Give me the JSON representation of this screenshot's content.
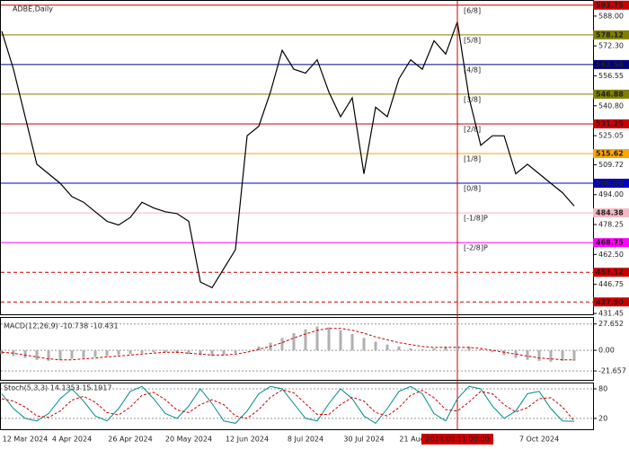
{
  "chart_data": [
    {
      "type": "line",
      "title": "ADBE,Daily",
      "color": "#000000",
      "categories": [
        null,
        null,
        "12 Mar 2024",
        null,
        null,
        null,
        "4 Apr 2024",
        null,
        null,
        null,
        null,
        "26 Apr 2024",
        null,
        null,
        null,
        null,
        "20 May 2024",
        null,
        null,
        null,
        null,
        "12 Jun 2024",
        null,
        null,
        null,
        null,
        "8 Jul 2024",
        null,
        null,
        null,
        null,
        "30 Jul 2024",
        null,
        null,
        null,
        null,
        "21 Aug 2024",
        null,
        null,
        "2024.09.11 00:00",
        null,
        null,
        null,
        null,
        null,
        null,
        "7 Oct 2024",
        null,
        null,
        null
      ],
      "values": [
        580,
        560,
        535,
        510,
        505,
        500,
        493,
        490,
        485,
        480,
        478,
        482,
        490,
        487,
        485,
        484,
        480,
        448,
        445,
        455,
        465,
        525,
        530,
        548,
        570,
        560,
        558,
        565,
        548,
        535,
        545,
        505,
        540,
        535,
        555,
        565,
        560,
        575,
        568,
        585,
        545,
        520,
        525,
        525,
        505,
        510,
        505,
        500,
        495,
        488
      ],
      "crosshair_index": 39,
      "ylim": [
        431,
        596
      ],
      "yticks": [
        {
          "value": 588,
          "label": "588.00"
        },
        {
          "value": 572.3,
          "label": "572.30"
        },
        556.55,
        {
          "value": 540.8,
          "label": "540.80"
        },
        525.05,
        509.72,
        {
          "value": 494,
          "label": "494.00"
        },
        478.25,
        {
          "value": 462.5,
          "label": "462.50"
        },
        446.75,
        431.45
      ],
      "levels": [
        {
          "value": 593.75,
          "label": "593.75",
          "tag": "[6/8]",
          "color": "#cc0000",
          "dashed": false
        },
        {
          "value": 578.12,
          "label": "578.12",
          "tag": "[5/8]",
          "color": "#808000",
          "dashed": false
        },
        {
          "value": 562.5,
          "label": "562.50",
          "tag": "[4/8]",
          "color": "#000080",
          "dashed": false
        },
        {
          "value": 546.88,
          "label": "546.88",
          "tag": "[3/8]",
          "color": "#808000",
          "dashed": false
        },
        {
          "value": 531.25,
          "label": "531.25",
          "tag": "[2/8]",
          "color": "#cc0000",
          "dashed": false
        },
        {
          "value": 515.62,
          "label": "515.62",
          "tag": "[1/8]",
          "color": "#ffa500",
          "dashed": false
        },
        {
          "value": 500,
          "label": "500.00",
          "tag": "[0/8]",
          "color": "#0000cc",
          "dashed": false
        },
        {
          "value": 484.38,
          "label": "484.38",
          "tag": "[-1/8]P",
          "color": "#f4b8c4",
          "dashed": false
        },
        {
          "value": 468.75,
          "label": "468.75",
          "tag": "[-2/8]P",
          "color": "#ff00ff",
          "dashed": false
        },
        {
          "value": 453.12,
          "label": "453.12",
          "color": "#cc0000",
          "dashed": true
        },
        {
          "value": 437.5,
          "label": "437.50",
          "color": "#cc0000",
          "dashed": true
        }
      ]
    },
    {
      "type": "bar",
      "label": "MACD(12,26,9) -10.738 -10.431",
      "color": "#b0b0b0",
      "signal_color": "#cc0000",
      "values": [
        -4,
        -6,
        -8,
        -10,
        -11,
        -10,
        -9,
        -8,
        -7,
        -6,
        -5,
        -4,
        -3,
        -2,
        -2,
        -3,
        -4,
        -5,
        -6,
        -5,
        -3,
        0,
        4,
        8,
        13,
        18,
        22,
        25,
        24,
        21,
        17,
        13,
        9,
        6,
        4,
        2,
        1,
        2,
        4,
        5,
        4,
        1,
        -2,
        -5,
        -8,
        -10,
        -11,
        -12,
        -11,
        -11
      ],
      "signal": [
        -2,
        -3,
        -5,
        -7,
        -9,
        -10,
        -10,
        -9,
        -8,
        -7,
        -6,
        -5,
        -4,
        -3,
        -2,
        -2,
        -3,
        -4,
        -5,
        -5,
        -4,
        -2,
        1,
        4,
        8,
        13,
        17,
        21,
        23,
        23,
        21,
        18,
        14,
        11,
        8,
        6,
        4,
        3,
        3,
        3,
        3,
        2,
        0,
        -2,
        -4,
        -6,
        -8,
        -9,
        -10,
        -10
      ],
      "ylim": [
        -31,
        34
      ],
      "yticks": [
        27.652,
        {
          "value": 0,
          "label": "0.00"
        },
        -21.657
      ]
    },
    {
      "type": "line",
      "label": "Stoch(5,3,3) 14.1353 15.1917",
      "series": [
        {
          "color": "#008b8b",
          "dashed": false,
          "values": [
            70,
            40,
            20,
            15,
            30,
            60,
            80,
            55,
            25,
            15,
            40,
            75,
            85,
            60,
            30,
            20,
            45,
            80,
            50,
            15,
            10,
            35,
            70,
            85,
            80,
            50,
            20,
            15,
            50,
            80,
            60,
            25,
            10,
            40,
            75,
            85,
            70,
            30,
            15,
            60,
            85,
            80,
            45,
            20,
            35,
            70,
            75,
            40,
            15,
            14
          ]
        },
        {
          "color": "#cc0000",
          "dashed": true,
          "values": [
            60,
            55,
            43,
            25,
            22,
            35,
            57,
            65,
            53,
            32,
            27,
            43,
            67,
            73,
            58,
            37,
            32,
            48,
            58,
            48,
            25,
            20,
            38,
            63,
            78,
            72,
            50,
            28,
            28,
            48,
            63,
            55,
            32,
            25,
            42,
            67,
            77,
            62,
            38,
            35,
            53,
            75,
            70,
            48,
            33,
            42,
            60,
            62,
            43,
            15
          ]
        }
      ],
      "ylim": [
        -2,
        91
      ],
      "yticks": [
        80,
        20
      ]
    }
  ]
}
